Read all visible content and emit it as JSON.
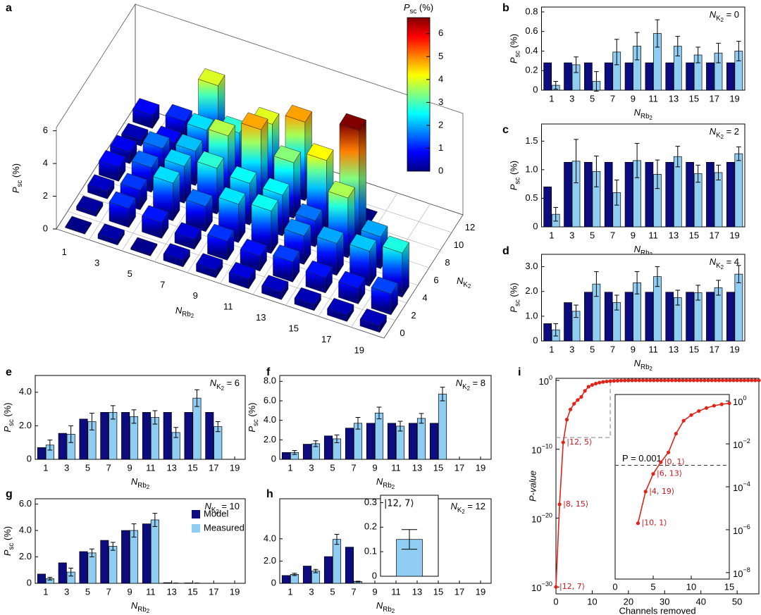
{
  "chart_data": [
    {
      "type": "bar3d",
      "panel": "a",
      "x_categories": [
        1,
        3,
        5,
        7,
        9,
        11,
        13,
        15,
        17,
        19
      ],
      "y_categories": [
        0,
        2,
        4,
        6,
        8,
        10,
        12
      ],
      "values": [
        [
          0.05,
          0.26,
          0.09,
          0.39,
          0.45,
          0.58,
          0.45,
          0.36,
          0.38,
          0.4
        ],
        [
          0.22,
          1.15,
          0.97,
          0.6,
          1.16,
          0.92,
          1.23,
          0.93,
          0.95,
          1.28
        ],
        [
          0.45,
          1.2,
          2.3,
          1.55,
          2.35,
          2.6,
          1.75,
          1.95,
          2.15,
          2.7
        ],
        [
          0.85,
          1.5,
          2.25,
          2.8,
          2.55,
          2.5,
          1.6,
          3.65,
          1.95,
          null
        ],
        [
          0.7,
          1.6,
          2.1,
          3.7,
          4.75,
          3.4,
          4.2,
          6.7,
          null,
          null
        ],
        [
          0.35,
          0.85,
          2.3,
          2.8,
          4.0,
          4.8,
          0.01,
          0.01,
          null,
          null
        ],
        [
          0.8,
          1.1,
          3.95,
          0.15,
          null,
          null,
          null,
          null,
          null,
          null
        ]
      ],
      "zlim": [
        0,
        6.2
      ],
      "zticks": [
        0,
        2,
        4,
        6
      ],
      "x_label": [
        "N",
        "Rb",
        "2"
      ],
      "y_label": [
        "N",
        "K",
        "2"
      ],
      "z_label": [
        "P",
        "sc",
        " (%)"
      ],
      "colorbar": {
        "title": [
          "P",
          "sc",
          " (%)"
        ],
        "lim": [
          0,
          6.7
        ],
        "ticks": [
          0,
          1,
          2,
          3,
          4,
          5,
          6
        ]
      }
    },
    {
      "type": "bar",
      "panel": "b",
      "categories": [
        1,
        3,
        5,
        7,
        9,
        11,
        13,
        15,
        17,
        19
      ],
      "series": [
        {
          "color": "#0c0c7e",
          "values": [
            0.28,
            0.28,
            0.28,
            0.28,
            0.28,
            0.28,
            0.28,
            0.28,
            0.28,
            0.28
          ]
        },
        {
          "color": "#8fcdf2",
          "values": [
            0.05,
            0.26,
            0.09,
            0.39,
            0.45,
            0.58,
            0.45,
            0.36,
            0.38,
            0.4
          ],
          "errors": [
            0.04,
            0.08,
            0.1,
            0.13,
            0.14,
            0.14,
            0.1,
            0.08,
            0.1,
            0.1
          ]
        }
      ],
      "ylim": [
        0,
        0.85
      ],
      "yticks": [
        0,
        0.2,
        0.4,
        0.6,
        0.8
      ],
      "x_label": [
        "N",
        "Rb",
        "2"
      ],
      "y_label": [
        "P",
        "sc",
        " (%)"
      ],
      "annotation": [
        "N",
        "K",
        "2",
        " = 0"
      ]
    },
    {
      "type": "bar",
      "panel": "c",
      "categories": [
        1,
        3,
        5,
        7,
        9,
        11,
        13,
        15,
        17,
        19
      ],
      "series": [
        {
          "color": "#0c0c7e",
          "values": [
            0.7,
            1.13,
            1.13,
            1.13,
            1.13,
            1.13,
            1.13,
            1.13,
            1.13,
            1.13
          ]
        },
        {
          "color": "#8fcdf2",
          "values": [
            0.22,
            1.15,
            0.97,
            0.6,
            1.16,
            0.92,
            1.23,
            0.93,
            0.95,
            1.28
          ],
          "errors": [
            0.12,
            0.38,
            0.27,
            0.22,
            0.3,
            0.25,
            0.18,
            0.15,
            0.13,
            0.12
          ]
        }
      ],
      "ylim": [
        0,
        1.8
      ],
      "yticks": [
        0,
        0.5,
        {
          "value": 1,
          "label": "1.0"
        },
        1.5
      ],
      "x_label": [
        "N",
        "Rb",
        "2"
      ],
      "y_label": [
        "P",
        "sc",
        " (%)"
      ],
      "annotation": [
        "N",
        "K",
        "2",
        " = 2"
      ]
    },
    {
      "type": "bar",
      "panel": "d",
      "categories": [
        1,
        3,
        5,
        7,
        9,
        11,
        13,
        15,
        17,
        19
      ],
      "series": [
        {
          "color": "#0c0c7e",
          "values": [
            0.7,
            1.55,
            1.97,
            1.97,
            1.97,
            1.97,
            1.97,
            1.97,
            1.97,
            1.97
          ]
        },
        {
          "color": "#8fcdf2",
          "values": [
            0.45,
            1.2,
            2.3,
            1.55,
            2.35,
            2.6,
            1.75,
            1.95,
            2.15,
            2.7
          ],
          "errors": [
            0.25,
            0.25,
            0.5,
            0.3,
            0.45,
            0.4,
            0.3,
            0.3,
            0.3,
            0.35
          ]
        }
      ],
      "ylim": [
        0,
        3.5
      ],
      "yticks": [
        0,
        {
          "value": 1,
          "label": "1.0"
        },
        {
          "value": 2,
          "label": "2.0"
        },
        {
          "value": 3,
          "label": "3.0"
        }
      ],
      "x_label": [
        "N",
        "Rb",
        "2"
      ],
      "y_label": [
        "P",
        "sc",
        " (%)"
      ],
      "annotation": [
        "N",
        "K",
        "2",
        " = 4"
      ]
    },
    {
      "type": "bar",
      "panel": "e",
      "categories": [
        1,
        3,
        5,
        7,
        9,
        11,
        13,
        15,
        17,
        19
      ],
      "series": [
        {
          "color": "#0c0c7e",
          "values": [
            0.7,
            1.55,
            2.4,
            2.8,
            2.8,
            2.8,
            2.8,
            2.8,
            2.8,
            null
          ]
        },
        {
          "color": "#8fcdf2",
          "values": [
            0.85,
            1.5,
            2.25,
            2.8,
            2.55,
            2.5,
            1.6,
            3.65,
            1.95,
            null
          ],
          "errors": [
            0.3,
            0.5,
            0.5,
            0.4,
            0.4,
            0.4,
            0.3,
            0.5,
            0.3,
            null
          ]
        }
      ],
      "ylim": [
        0,
        5
      ],
      "yticks": [
        0,
        {
          "value": 2,
          "label": "2.0"
        },
        {
          "value": 4,
          "label": "4.0"
        }
      ],
      "x_label": [
        "N",
        "Rb",
        "2"
      ],
      "y_label": [
        "P",
        "sc",
        " (%)"
      ],
      "annotation": [
        "N",
        "K",
        "2",
        " = 6"
      ]
    },
    {
      "type": "bar",
      "panel": "f",
      "categories": [
        1,
        3,
        5,
        7,
        9,
        11,
        13,
        15,
        17,
        19
      ],
      "series": [
        {
          "color": "#0c0c7e",
          "values": [
            0.7,
            1.55,
            2.4,
            3.2,
            3.7,
            3.7,
            3.7,
            3.7,
            null,
            null
          ]
        },
        {
          "color": "#8fcdf2",
          "values": [
            0.7,
            1.6,
            2.1,
            3.7,
            4.75,
            3.4,
            4.2,
            6.7,
            null,
            null
          ],
          "errors": [
            0.2,
            0.3,
            0.4,
            0.6,
            0.6,
            0.5,
            0.5,
            0.7,
            null,
            null
          ]
        }
      ],
      "ylim": [
        0,
        8.6
      ],
      "yticks": [
        0,
        {
          "value": 2,
          "label": "2.0"
        },
        {
          "value": 4,
          "label": "4.0"
        },
        {
          "value": 6,
          "label": "6.0"
        },
        {
          "value": 8,
          "label": "8.0"
        }
      ],
      "x_label": [
        "N",
        "Rb",
        "2"
      ],
      "y_label": [
        "P",
        "sc",
        " (%)"
      ],
      "annotation": [
        "N",
        "K",
        "2",
        " = 8"
      ]
    },
    {
      "type": "bar",
      "panel": "g",
      "categories": [
        1,
        3,
        5,
        7,
        9,
        11,
        13,
        15,
        17,
        19
      ],
      "legend": "center right",
      "series": [
        {
          "name": "Model",
          "color": "#0c0c7e",
          "values": [
            0.7,
            1.55,
            2.4,
            3.25,
            4.0,
            4.5,
            0.05,
            0.03,
            null,
            null
          ]
        },
        {
          "name": "Measured",
          "color": "#8fcdf2",
          "values": [
            0.35,
            0.85,
            2.3,
            2.8,
            4.0,
            4.8,
            0.01,
            0.01,
            null,
            null
          ],
          "errors": [
            0.1,
            0.3,
            0.3,
            0.3,
            0.5,
            0.5,
            0.01,
            0.01,
            null,
            null
          ]
        }
      ],
      "ylim": [
        0,
        6.4
      ],
      "yticks": [
        0,
        {
          "value": 2,
          "label": "2.0"
        },
        {
          "value": 4,
          "label": "4.0"
        },
        {
          "value": 6,
          "label": "6.0"
        }
      ],
      "x_label": [
        "N",
        "Rb",
        "2"
      ],
      "y_label": [
        "P",
        "sc",
        " (%)"
      ],
      "annotation": [
        "N",
        "K",
        "2",
        " = 10"
      ]
    },
    {
      "type": "bar",
      "panel": "h",
      "categories": [
        1,
        3,
        5,
        7,
        9,
        11,
        13,
        15,
        17,
        19
      ],
      "series": [
        {
          "color": "#0c0c7e",
          "values": [
            0.7,
            1.55,
            2.4,
            3.25,
            null,
            null,
            null,
            null,
            null,
            null
          ]
        },
        {
          "color": "#8fcdf2",
          "values": [
            0.8,
            1.1,
            3.95,
            0.15,
            null,
            null,
            null,
            null,
            null,
            null
          ],
          "errors": [
            0.1,
            0.15,
            0.45,
            0.04,
            null,
            null,
            null,
            null,
            null,
            null
          ]
        }
      ],
      "ylim": [
        0,
        7.6
      ],
      "yticks": [
        0,
        {
          "value": 2,
          "label": "2.0"
        },
        {
          "value": 4,
          "label": "4.0"
        }
      ],
      "x_label": [
        "N",
        "Rb",
        "2"
      ],
      "annotation": [
        "N",
        "K",
        "2",
        " = 12"
      ]
    },
    {
      "type": "bar",
      "title": "|12, 7⟩",
      "categories": [
        null
      ],
      "series": [
        {
          "color": "#8fcdf2",
          "values": [
            0.15
          ],
          "errors": [
            0.04
          ]
        }
      ],
      "ylim": [
        0,
        0.33
      ],
      "yticks": [
        0,
        0.1,
        0.2,
        0.3
      ]
    },
    {
      "type": "line",
      "panel": "i",
      "log_y": true,
      "color": "#e2231a",
      "x": [
        0,
        1,
        2,
        3,
        4,
        5,
        6,
        7,
        8,
        9,
        10,
        11,
        12,
        13,
        14,
        15,
        16,
        17,
        18,
        19,
        20,
        21,
        22,
        23,
        24,
        25,
        26,
        27,
        28,
        29,
        30,
        31,
        32,
        33,
        34,
        35,
        36,
        37,
        38,
        39,
        40,
        41,
        42,
        43,
        44,
        45,
        46,
        47,
        48,
        49,
        50,
        51,
        52,
        53,
        54,
        55,
        56
      ],
      "values": [
        1e-30,
        1e-18,
        1e-09,
        2e-06,
        6e-05,
        0.0004,
        0.0014,
        0.004,
        0.03,
        0.12,
        0.22,
        0.34,
        0.47,
        0.6,
        0.7,
        0.78,
        0.85,
        0.9,
        0.94,
        0.96,
        0.98,
        0.99,
        1,
        1,
        1,
        1,
        1,
        1,
        1,
        1,
        1,
        1,
        1,
        1,
        1,
        1,
        1,
        1,
        1,
        1,
        1,
        1,
        1,
        1,
        1,
        1,
        1,
        1,
        1,
        1,
        1,
        1,
        1,
        1,
        1,
        1,
        1
      ],
      "xlim": [
        0,
        56
      ],
      "ylim": [
        1e-31,
        2
      ],
      "xticks": [
        0,
        10,
        20,
        30,
        40,
        50
      ],
      "yticks": [
        {
          "value": 1,
          "label": "10",
          "exponent": "0"
        },
        {
          "value": 1e-10,
          "label": "10",
          "exponent": "−10"
        },
        {
          "value": 1e-20,
          "label": "10",
          "exponent": "−20"
        },
        {
          "value": 1e-30,
          "label": "10",
          "exponent": "−30"
        }
      ],
      "x_label": "Channels removed",
      "y_label": "P-value",
      "annotations": [
        {
          "text": "|12, 7⟩",
          "point": 0
        },
        {
          "text": "|8, 15⟩",
          "point": 1
        },
        {
          "text": "|12, 5⟩",
          "point": 2
        }
      ]
    },
    {
      "type": "line",
      "log_y": true,
      "color": "#e2231a",
      "x": [
        3,
        4,
        5,
        6,
        7,
        8,
        9,
        10,
        11,
        12,
        13,
        14,
        15
      ],
      "values": [
        2e-06,
        6e-05,
        0.0004,
        0.0014,
        0.004,
        0.03,
        0.12,
        0.22,
        0.34,
        0.47,
        0.6,
        0.7,
        0.78
      ],
      "xlim": [
        0,
        15
      ],
      "ylim": [
        5e-09,
        2
      ],
      "xticks": [
        0,
        5,
        10,
        15
      ],
      "yticks": [
        {
          "value": 1,
          "label": "10",
          "exponent": "0"
        },
        {
          "value": 0.01,
          "label": "10",
          "exponent": "−2"
        },
        {
          "value": 0.0001,
          "label": "10",
          "exponent": "−4"
        },
        {
          "value": 1e-06,
          "label": "10",
          "exponent": "−6"
        },
        {
          "value": 1e-08,
          "label": "10",
          "exponent": "−8"
        }
      ],
      "threshold": {
        "value": 0.001,
        "label": "P = 0.001"
      },
      "annotations": [
        {
          "text": "|10, 1⟩",
          "point": 0
        },
        {
          "text": "|4, 19⟩",
          "point": 1
        },
        {
          "text": "|6, 13⟩",
          "point": 2
        },
        {
          "text": "|0, 1⟩",
          "point": 3
        }
      ]
    }
  ]
}
